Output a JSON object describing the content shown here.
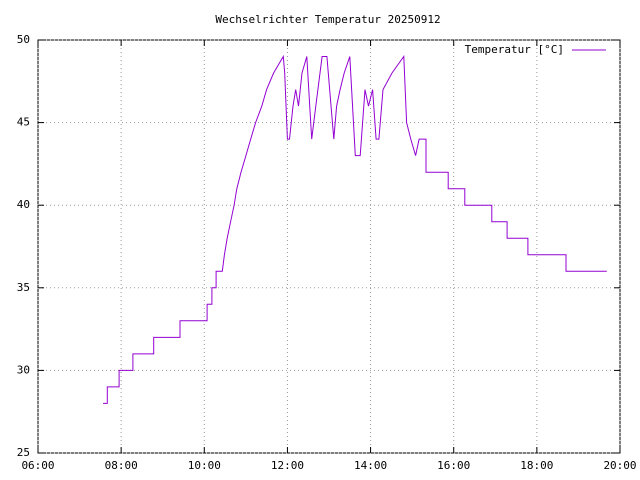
{
  "chart_data": {
    "type": "line",
    "title": "Wechselrichter Temperatur 20250912",
    "x": [
      "07:34",
      "07:40",
      "07:40",
      "07:57",
      "07:57",
      "08:17",
      "08:17",
      "08:47",
      "08:47",
      "09:25",
      "09:25",
      "10:04",
      "10:04",
      "10:11",
      "10:11",
      "10:17",
      "10:17",
      "10:26",
      "10:29",
      "10:33",
      "10:38",
      "10:43",
      "10:47",
      "10:53",
      "11:00",
      "11:07",
      "11:14",
      "11:23",
      "11:30",
      "11:40",
      "11:54",
      "11:56",
      "12:00",
      "12:03",
      "12:08",
      "12:12",
      "12:16",
      "12:21",
      "12:28",
      "12:35",
      "12:41",
      "12:50",
      "12:57",
      "13:07",
      "13:11",
      "13:16",
      "13:22",
      "13:30",
      "13:38",
      "13:45",
      "13:52",
      "13:57",
      "14:03",
      "14:08",
      "14:12",
      "14:18",
      "14:31",
      "14:48",
      "14:52",
      "14:58",
      "15:05",
      "15:10",
      "15:20",
      "15:20",
      "15:52",
      "15:52",
      "16:16",
      "16:16",
      "16:55",
      "16:55",
      "17:17",
      "17:17",
      "17:47",
      "17:47",
      "18:42",
      "18:42",
      "19:41"
    ],
    "series": [
      {
        "name": "Temperatur [°C]",
        "color": "#9400d3",
        "values": [
          28,
          28,
          29,
          29,
          30,
          30,
          31,
          31,
          32,
          32,
          33,
          33,
          34,
          34,
          35,
          35,
          36,
          36,
          37,
          38,
          39,
          40,
          41,
          42,
          43,
          44,
          45,
          46,
          47,
          48,
          49,
          48,
          44,
          44,
          46,
          47,
          46,
          48,
          49,
          44,
          46,
          49,
          49,
          44,
          46,
          47,
          48,
          49,
          43,
          43,
          47,
          46,
          47,
          44,
          44,
          47,
          48,
          49,
          45,
          44,
          43,
          44,
          44,
          42,
          42,
          41,
          41,
          40,
          40,
          39,
          39,
          38,
          38,
          37,
          37,
          36,
          36
        ]
      }
    ],
    "xlim": [
      "06:00",
      "20:00"
    ],
    "xticks": [
      "06:00",
      "08:00",
      "10:00",
      "12:00",
      "14:00",
      "16:00",
      "18:00",
      "20:00"
    ],
    "ylim": [
      25,
      50
    ],
    "yticks": [
      25,
      30,
      35,
      40,
      45,
      50
    ],
    "grid": true,
    "legend": "top-right"
  }
}
